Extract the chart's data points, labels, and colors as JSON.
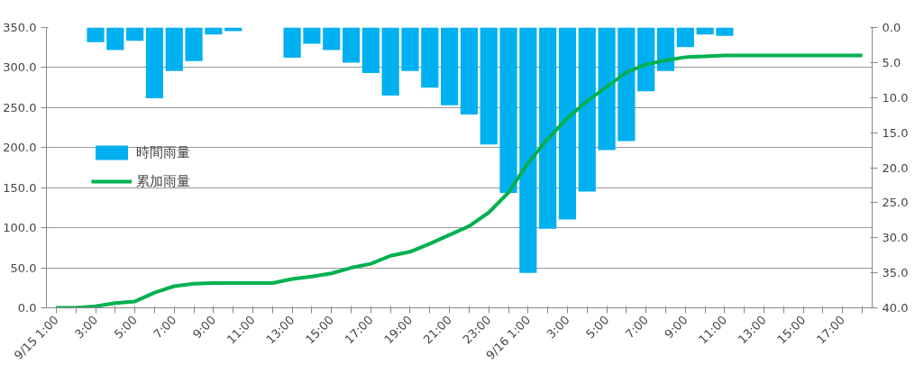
{
  "chart_data": {
    "type": "bar",
    "categories": [
      "9/15 1:00",
      null,
      "3:00",
      null,
      "5:00",
      null,
      "7:00",
      null,
      "9:00",
      null,
      "11:00",
      null,
      "13:00",
      null,
      "15:00",
      null,
      "17:00",
      null,
      "19:00",
      null,
      "21:00",
      null,
      "23:00",
      null,
      "9/16 1:00",
      null,
      "3:00",
      null,
      "5:00",
      null,
      "7:00",
      null,
      "9:00",
      null,
      "11:00",
      null,
      "13:00",
      null,
      "15:00",
      null,
      "17:00",
      null
    ],
    "series": [
      {
        "name": "時間雨量",
        "axis": "y2",
        "color": "#00b0f0",
        "values": [
          0,
          0,
          2.1,
          3.2,
          1.9,
          10.1,
          6.2,
          4.8,
          1.0,
          0.5,
          0,
          0,
          4.3,
          2.3,
          3.2,
          5.0,
          6.5,
          9.7,
          6.2,
          8.6,
          11.1,
          12.4,
          16.7,
          23.6,
          35.0,
          28.7,
          27.4,
          23.4,
          17.5,
          16.2,
          9.1,
          6.2,
          2.8,
          1.0,
          1.2,
          0,
          0,
          0,
          0,
          0,
          0,
          0
        ]
      },
      {
        "name": "累加雨量",
        "type": "line",
        "color": "#00b050",
        "values": [
          0,
          0,
          2,
          6,
          8,
          19,
          27,
          30,
          31,
          31,
          31,
          31,
          36,
          39,
          43,
          50,
          55,
          65,
          70,
          80,
          91,
          102,
          119,
          144,
          181,
          211,
          237,
          258,
          276,
          294,
          304,
          309,
          313,
          314,
          315,
          315,
          315,
          315,
          315,
          315,
          315,
          315
        ]
      }
    ],
    "ylim": [
      0,
      350
    ],
    "yticks": [
      {
        "value": 0,
        "label": "0.0"
      },
      {
        "value": 50,
        "label": "50.0"
      },
      {
        "value": 100,
        "label": "100.0"
      },
      {
        "value": 150,
        "label": "150.0"
      },
      {
        "value": 200,
        "label": "200.0"
      },
      {
        "value": 250,
        "label": "250.0"
      },
      {
        "value": 300,
        "label": "300.0"
      },
      {
        "value": 350,
        "label": "350.0"
      }
    ],
    "y2lim": [
      40,
      0
    ],
    "y2ticks": [
      {
        "value": 0,
        "label": "0.0"
      },
      {
        "value": 5,
        "label": "5.0"
      },
      {
        "value": 10,
        "label": "10.0"
      },
      {
        "value": 15,
        "label": "15.0"
      },
      {
        "value": 20,
        "label": "20.0"
      },
      {
        "value": 25,
        "label": "25.0"
      },
      {
        "value": 30,
        "label": "30.0"
      },
      {
        "value": 35,
        "label": "35.0"
      },
      {
        "value": 40,
        "label": "40.0"
      }
    ],
    "grid": "y",
    "legend": "left",
    "line_style": "solid"
  }
}
